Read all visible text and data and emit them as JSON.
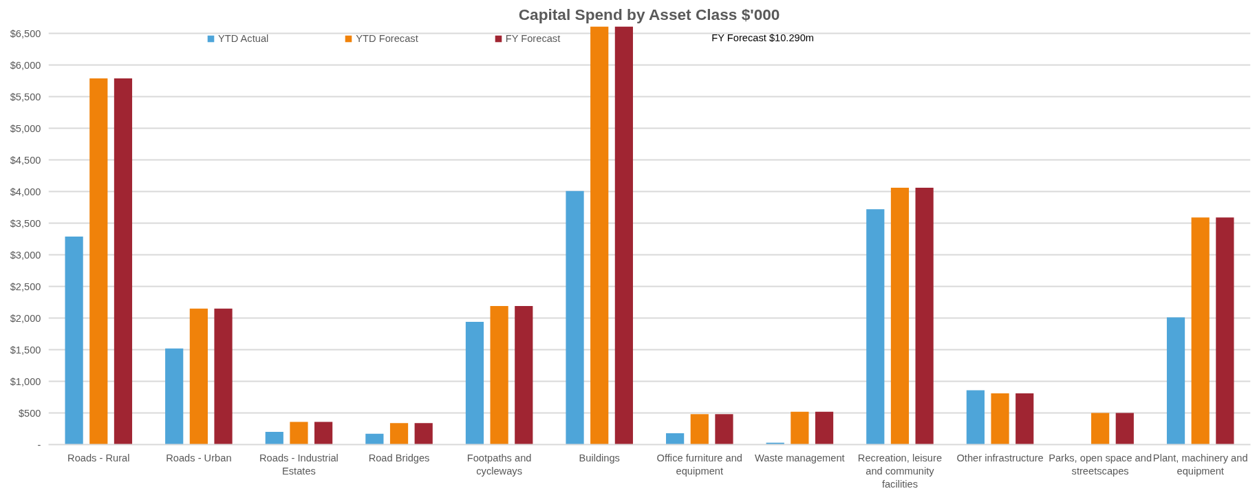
{
  "chart_data": {
    "type": "bar",
    "title": "Capital Spend by Asset Class $'000",
    "categories": [
      "Roads - Rural",
      "Roads - Urban",
      "Roads - Industrial Estates",
      "Road Bridges",
      "Footpaths and cycleways",
      "Buildings",
      "Office furniture and equipment",
      "Waste management",
      "Recreation, leisure and community facilities",
      "Other infrastructure",
      "Parks, open space and streetscapes",
      "Plant, machinery and equipment"
    ],
    "series": [
      {
        "name": "YTD Actual",
        "color": "#4ea5d9",
        "values": [
          3290,
          1520,
          200,
          170,
          1940,
          4010,
          180,
          30,
          3720,
          860,
          null,
          2010
        ]
      },
      {
        "name": "YTD Forecast",
        "color": "#f0820a",
        "values": [
          5790,
          2150,
          360,
          340,
          2190,
          6610,
          480,
          520,
          4060,
          810,
          500,
          3590
        ]
      },
      {
        "name": "FY Forecast",
        "color": "#a02532",
        "values": [
          5790,
          2150,
          360,
          340,
          2190,
          6610,
          480,
          520,
          4060,
          810,
          500,
          3590
        ]
      }
    ],
    "ylim": [
      0,
      6610
    ],
    "yticks": [
      {
        "value": 0,
        "label": "-"
      },
      {
        "value": 500,
        "label": "$500"
      },
      {
        "value": 1000,
        "label": "$1,000"
      },
      {
        "value": 1500,
        "label": "$1,500"
      },
      {
        "value": 2000,
        "label": "$2,000"
      },
      {
        "value": 2500,
        "label": "$2,500"
      },
      {
        "value": 3000,
        "label": "$3,000"
      },
      {
        "value": 3500,
        "label": "$3,500"
      },
      {
        "value": 4000,
        "label": "$4,000"
      },
      {
        "value": 4500,
        "label": "$4,500"
      },
      {
        "value": 5000,
        "label": "$5,000"
      },
      {
        "value": 5500,
        "label": "$5,500"
      },
      {
        "value": 6000,
        "label": "$6,000"
      },
      {
        "value": 6500,
        "label": "$6,500"
      }
    ],
    "annotations": [
      "FY Forecast $10.290m"
    ],
    "grid": "y",
    "legend": "top left"
  }
}
